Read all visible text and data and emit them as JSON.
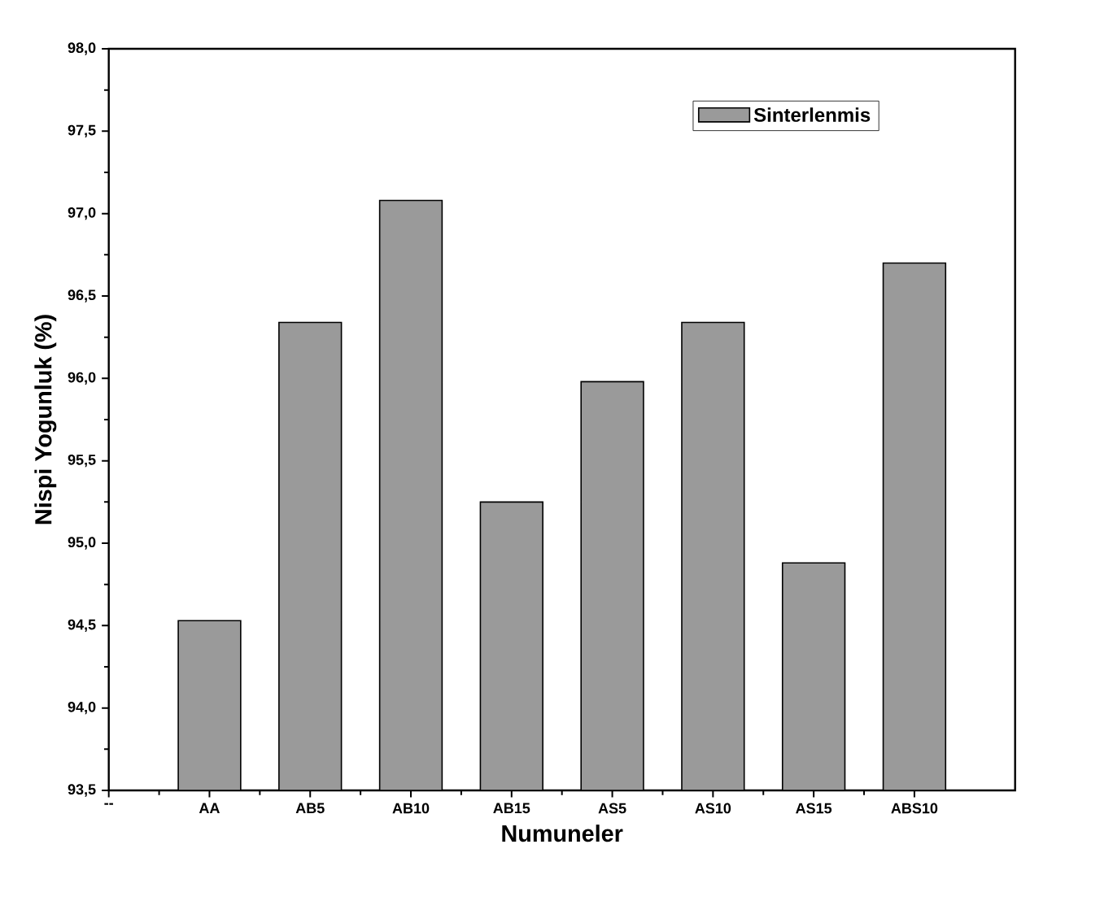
{
  "chart_data": {
    "type": "bar",
    "xlabel": "Numuneler",
    "ylabel": "Nispi Yogunluk (%)",
    "categories": [
      "--",
      "AA",
      "AB5",
      "AB10",
      "AB15",
      "AS5",
      "AS10",
      "AS15",
      "ABS10"
    ],
    "series": [
      {
        "name": "Sinterlenmis",
        "color": "#9a9a9a",
        "values": [
          null,
          94.53,
          96.34,
          97.08,
          95.25,
          95.98,
          96.34,
          94.88,
          96.7
        ]
      }
    ],
    "ylim": [
      93.5,
      98.0
    ],
    "yticks": [
      {
        "value": 93.5,
        "label": "93,5"
      },
      {
        "value": 94.0,
        "label": "94,0"
      },
      {
        "value": 94.5,
        "label": "94,5"
      },
      {
        "value": 95.0,
        "label": "95,0"
      },
      {
        "value": 95.5,
        "label": "95,5"
      },
      {
        "value": 96.0,
        "label": "96,0"
      },
      {
        "value": 96.5,
        "label": "96,5"
      },
      {
        "value": 97.0,
        "label": "97,0"
      },
      {
        "value": 97.5,
        "label": "97,5"
      },
      {
        "value": 98.0,
        "label": "98,0"
      }
    ],
    "legend": "top right"
  }
}
